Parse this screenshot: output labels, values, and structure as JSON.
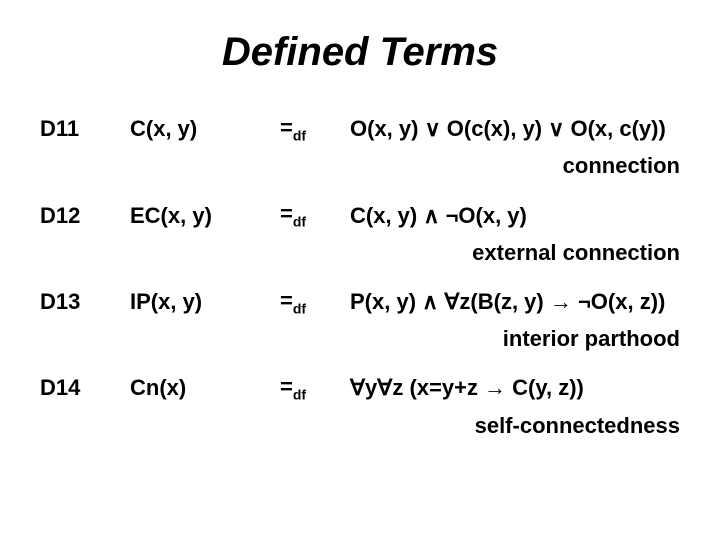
{
  "title": "Defined Terms",
  "rows": [
    {
      "id": "D11",
      "term": "C(x, y)",
      "eq": "=",
      "sub": "df",
      "expr": "O(x, y) ∨ O(c(x), y) ∨ O(x, c(y))",
      "gloss": "connection"
    },
    {
      "id": "D12",
      "term": "EC(x, y)",
      "eq": "=",
      "sub": "df",
      "expr": "C(x, y) ∧ ¬O(x, y)",
      "gloss": "external connection"
    },
    {
      "id": "D13",
      "term": "IP(x, y)",
      "eq": "=",
      "sub": "df",
      "expr": "P(x, y) ∧ ∀z(B(z, y) → ¬O(x, z))",
      "gloss": "interior parthood"
    },
    {
      "id": "D14",
      "term": "Cn(x)",
      "eq": "=",
      "sub": "df",
      "expr": "∀y∀z (x=y+z → C(y, z))",
      "gloss": "self-connectedness"
    }
  ],
  "style": {
    "background": "#ffffff",
    "text_color": "#000000",
    "title_fontsize": 40,
    "body_fontsize": 22,
    "sub_fontsize": 14,
    "font_family": "Arial"
  }
}
